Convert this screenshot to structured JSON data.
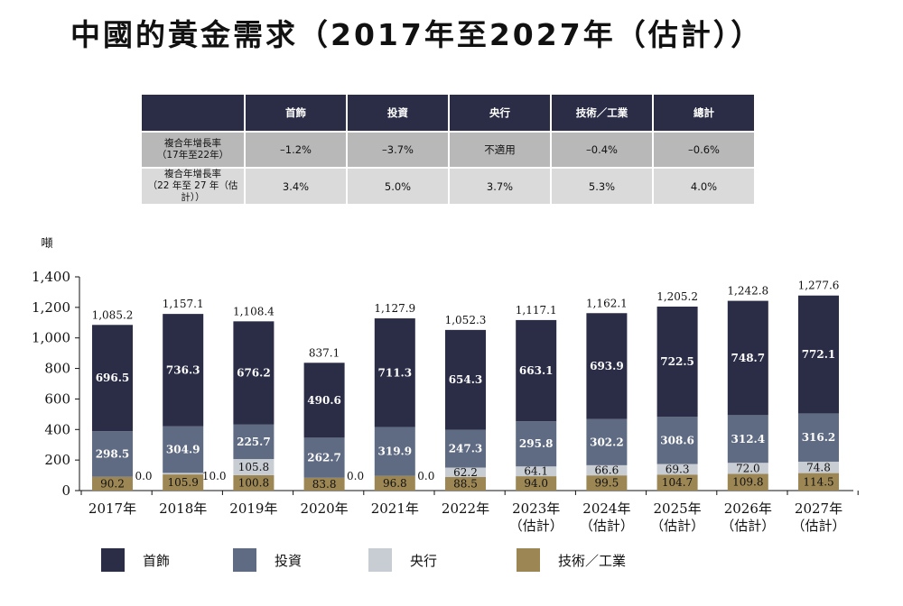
{
  "title": "中國的黃金需求（2017年至2027年（估計））",
  "table": {
    "headers": [
      "",
      "首飾",
      "投資",
      "央行",
      "技術／工業",
      "總計"
    ],
    "rows": [
      {
        "label_line1": "複合年增長率",
        "label_line2": "（17年至22年）",
        "values": [
          "–1.2%",
          "–3.7%",
          "不適用",
          "–0.4%",
          "–0.6%"
        ]
      },
      {
        "label_line1": "複合年增長率",
        "label_line2": "（22 年至 27 年（估計））",
        "values": [
          "3.4%",
          "5.0%",
          "3.7%",
          "5.3%",
          "4.0%"
        ]
      }
    ]
  },
  "colors": {
    "jewelry": "#2b2d47",
    "investment": "#5f6b82",
    "central_bank": "#c8ccd3",
    "tech": "#9c8654",
    "header_bg": "#2b2d47",
    "axis": "#111111"
  },
  "chart_data": {
    "type": "bar",
    "stacked": true,
    "ylabel": "噸",
    "ylim": [
      0,
      1400
    ],
    "yticks": [
      0,
      200,
      400,
      600,
      800,
      1000,
      1200,
      1400
    ],
    "ytick_labels": [
      "0",
      "200",
      "400",
      "600",
      "800",
      "1,000",
      "1,200",
      "1,400"
    ],
    "categories": [
      [
        "2017年"
      ],
      [
        "2018年"
      ],
      [
        "2019年"
      ],
      [
        "2020年"
      ],
      [
        "2021年"
      ],
      [
        "2022年"
      ],
      [
        "2023年",
        "（估計）"
      ],
      [
        "2024年",
        "（估計）"
      ],
      [
        "2025年",
        "（估計）"
      ],
      [
        "2026年",
        "（估計）"
      ],
      [
        "2027年",
        "（估計）"
      ]
    ],
    "series": [
      {
        "name": "技術／工業",
        "key": "tech",
        "values": [
          90.2,
          105.9,
          100.8,
          83.8,
          96.8,
          88.5,
          94.0,
          99.5,
          104.7,
          109.8,
          114.5
        ],
        "labels": [
          "90.2",
          "105.9",
          "100.8",
          "83.8",
          "96.8",
          "88.5",
          "94.0",
          "99.5",
          "104.7",
          "109.8",
          "114.5"
        ]
      },
      {
        "name": "央行",
        "key": "central_bank",
        "values": [
          0.0,
          10.0,
          105.8,
          0.0,
          0.0,
          62.2,
          64.1,
          66.6,
          69.3,
          72.0,
          74.8
        ],
        "labels": [
          "0.0",
          "10.0",
          "105.8",
          "0.0",
          "0.0",
          "62.2",
          "64.1",
          "66.6",
          "69.3",
          "72.0",
          "74.8"
        ]
      },
      {
        "name": "投資",
        "key": "investment",
        "values": [
          298.5,
          304.9,
          225.7,
          262.7,
          319.9,
          247.3,
          295.8,
          302.2,
          308.6,
          312.4,
          316.2
        ],
        "labels": [
          "298.5",
          "304.9",
          "225.7",
          "262.7",
          "319.9",
          "247.3",
          "295.8",
          "302.2",
          "308.6",
          "312.4",
          "316.2"
        ]
      },
      {
        "name": "首飾",
        "key": "jewelry",
        "values": [
          696.5,
          736.3,
          676.2,
          490.6,
          711.3,
          654.3,
          663.1,
          693.9,
          722.5,
          748.7,
          772.1
        ],
        "labels": [
          "696.5",
          "736.3",
          "676.2",
          "490.6",
          "711.3",
          "654.3",
          "663.1",
          "693.9",
          "722.5",
          "748.7",
          "772.1"
        ]
      }
    ],
    "totals": [
      1085.2,
      1157.1,
      1108.4,
      837.1,
      1127.9,
      1052.3,
      1117.1,
      1162.1,
      1205.2,
      1242.8,
      1277.6
    ],
    "total_labels": [
      "1,085.2",
      "1,157.1",
      "1,108.4",
      "837.1",
      "1,127.9",
      "1,052.3",
      "1,117.1",
      "1,162.1",
      "1,205.2",
      "1,242.8",
      "1,277.6"
    ]
  },
  "legend": [
    {
      "label": "首飾",
      "key": "jewelry"
    },
    {
      "label": "投資",
      "key": "investment"
    },
    {
      "label": "央行",
      "key": "central_bank"
    },
    {
      "label": "技術／工業",
      "key": "tech"
    }
  ]
}
